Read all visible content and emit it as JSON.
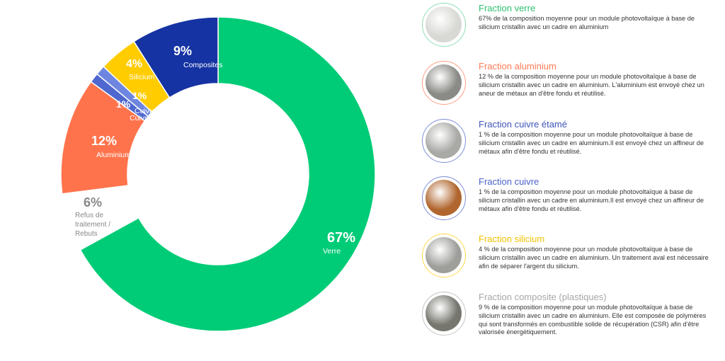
{
  "chart_data": {
    "type": "pie",
    "variant": "donut",
    "slices": [
      {
        "label": "Verre",
        "value": 67,
        "display": "67%",
        "color": "#00cc77"
      },
      {
        "label": "Refus de traitement / Rebuts",
        "value": 6,
        "display": "6%",
        "color": "#ffffff"
      },
      {
        "label": "Aluminium",
        "value": 12,
        "display": "12%",
        "color": "#ff734c"
      },
      {
        "label": "Cuivre étamé",
        "value": 1,
        "display": "1%",
        "color": "#4f68cf"
      },
      {
        "label": "Cuivre",
        "value": 1,
        "display": "1%",
        "color": "#6e86e0"
      },
      {
        "label": "Silicium",
        "value": 4,
        "display": "4%",
        "color": "#ffcc00"
      },
      {
        "label": "Composites",
        "value": 9,
        "display": "9%",
        "color": "#1533a3"
      }
    ]
  },
  "legend": [
    {
      "title": "Fraction verre",
      "title_color": "#2fc070",
      "border": "#8fdcb4",
      "text": "67% de la composition moyenne pour un module photovoltaïque à base de silicium cristallin avec un cadre en aluminium",
      "swatch": "#d8d8d4"
    },
    {
      "title": "Fraction aluminium",
      "title_color": "#ff7a55",
      "border": "#ff9e83",
      "text": "12 % de la composition moyenne pour un module photovoltaïque à base de silicium cristallin avec un cadre en aluminium. L'aluminium est envoyé chez un aneur de métaux an d'être fondu et réutilisé.",
      "swatch": "#8a8a86"
    },
    {
      "title": "Fraction cuivre étamé",
      "title_color": "#3f55b8",
      "border": "#7d8fd6",
      "text": "1 % de la composition moyenne pour un module photovoltaïque à base de silicium cristallin avec un cadre en aluminium.Il est envoyé chez un affineur de métaux afin d'être fondu et réutilisé.",
      "swatch": "#a9a9a6"
    },
    {
      "title": "Fraction cuivre",
      "title_color": "#4a63c9",
      "border": "#7d8fd6",
      "text": "1 % de la composition moyenne pour un module photovoltaïque à base de silicium cristallin avec un cadre en aluminium.Il est envoyé chez un affineur de métaux afin d'être fondu et réutilisé.",
      "swatch": "#b0662e"
    },
    {
      "title": "Fraction silicium",
      "title_color": "#f2c200",
      "border": "#ffd84d",
      "text": "4 % de la composition moyenne pour un module photovoltaïque à base de silicium cristallin avec un cadre en aluminium. Un traitement aval est nécessaire afin de séparer l'argent du silicium.",
      "swatch": "#9e9e9b"
    },
    {
      "title": "Fraction composite (plastiques)",
      "title_color": "#a7a7a7",
      "border": "#c4c4c4",
      "text": "9 % de la composition moyenne pour un module photovoltaïque à base de silicium cristallin avec un cadre en aluminium. Elle est composée de polymères qui sont transformés en combustible solide de récupération (CSR) afin d'être valorisée énergétiquement.",
      "swatch": "#76766f"
    }
  ]
}
